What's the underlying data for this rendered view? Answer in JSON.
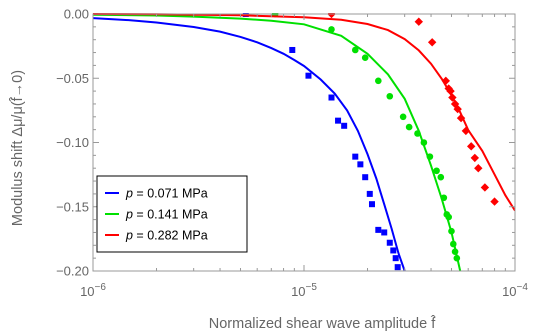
{
  "chart_data": {
    "type": "scatter",
    "xlabel": "Normalized shear wave amplitude f̂",
    "ylabel": "Modulus shift Δμ/μ(f̂→0)",
    "x_scale": "log",
    "xlim": [
      1e-06,
      0.0001
    ],
    "ylim": [
      -0.2,
      0.0
    ],
    "x_ticks": [
      1e-06,
      1e-05,
      0.0001
    ],
    "x_tick_labels": [
      {
        "base": "10",
        "exp": "−6"
      },
      {
        "base": "10",
        "exp": "−5"
      },
      {
        "base": "10",
        "exp": "−4"
      }
    ],
    "y_ticks": [
      0.0,
      -0.05,
      -0.1,
      -0.15,
      -0.2
    ],
    "y_tick_labels": [
      "0.00",
      "−0.05",
      "−0.10",
      "−0.15",
      "−0.20"
    ],
    "grid": false,
    "legend_position": "lower-left",
    "series": [
      {
        "name": "p = 0.071 MPa",
        "var": "p",
        "rest": " = 0.071 MPa",
        "color": "#0000ff",
        "marker": "square",
        "fit": {
          "x": [
            1e-06,
            1.5e-06,
            2e-06,
            3e-06,
            4e-06,
            5e-06,
            6e-06,
            7e-06,
            8e-06,
            9e-06,
            1e-05,
            1.2e-05,
            1.4e-05,
            1.6e-05,
            1.8e-05,
            2e-05,
            2.2e-05,
            2.4e-05,
            2.6e-05,
            2.8e-05,
            3e-05
          ],
          "y": [
            -0.0032,
            -0.0048,
            -0.0066,
            -0.0101,
            -0.0137,
            -0.0178,
            -0.022,
            -0.0265,
            -0.031,
            -0.0358,
            -0.0405,
            -0.051,
            -0.062,
            -0.075,
            -0.091,
            -0.109,
            -0.128,
            -0.148,
            -0.167,
            -0.186,
            -0.2
          ]
        },
        "points": {
          "x": [
            5.3e-06,
            8.8e-06,
            1.05e-05,
            1.35e-05,
            1.45e-05,
            1.55e-05,
            1.75e-05,
            1.85e-05,
            1.95e-05,
            2.05e-05,
            2.1e-05,
            2.25e-05,
            2.4e-05,
            2.55e-05,
            2.65e-05,
            2.72e-05,
            2.78e-05
          ],
          "y": [
            0.0,
            -0.028,
            -0.048,
            -0.065,
            -0.083,
            -0.087,
            -0.111,
            -0.117,
            -0.127,
            -0.14,
            -0.148,
            -0.168,
            -0.17,
            -0.178,
            -0.184,
            -0.19,
            -0.197
          ]
        }
      },
      {
        "name": "p = 0.141 MPa",
        "var": "p",
        "rest": " = 0.141 MPa",
        "color": "#00e000",
        "marker": "circle",
        "fit": {
          "x": [
            1e-06,
            2e-06,
            3e-06,
            5e-06,
            7e-06,
            1e-05,
            1.5e-05,
            2e-05,
            2.5e-05,
            3e-05,
            3.5e-05,
            4e-05,
            4.5e-05,
            5e-05,
            5.5e-05
          ],
          "y": [
            -0.0006,
            -0.0012,
            -0.002,
            -0.0036,
            -0.0052,
            -0.008,
            -0.017,
            -0.031,
            -0.047,
            -0.066,
            -0.091,
            -0.118,
            -0.144,
            -0.17,
            -0.2
          ]
        },
        "points": {
          "x": [
            7.3e-06,
            1.35e-05,
            1.75e-05,
            1.95e-05,
            2.25e-05,
            2.55e-05,
            2.95e-05,
            3.15e-05,
            3.45e-05,
            3.7e-05,
            3.95e-05,
            4.25e-05,
            4.45e-05,
            4.6e-05,
            4.75e-05,
            4.85e-05,
            5e-05,
            5.1e-05,
            5.2e-05,
            5.3e-05
          ],
          "y": [
            0.0,
            -0.012,
            -0.028,
            -0.034,
            -0.052,
            -0.064,
            -0.08,
            -0.088,
            -0.093,
            -0.1,
            -0.111,
            -0.122,
            -0.127,
            -0.143,
            -0.156,
            -0.158,
            -0.169,
            -0.179,
            -0.185,
            -0.19
          ]
        }
      },
      {
        "name": "p = 0.282 MPa",
        "var": "p",
        "rest": " = 0.282 MPa",
        "color": "#ff0000",
        "marker": "diamond",
        "fit": {
          "x": [
            1e-06,
            2e-06,
            5e-06,
            1e-05,
            1.5e-05,
            2e-05,
            2.5e-05,
            3e-05,
            3.5e-05,
            4e-05,
            4.5e-05,
            5e-05,
            5.5e-05,
            6e-05,
            7e-05,
            8e-05,
            9e-05,
            0.0001
          ],
          "y": [
            0.0,
            -0.0002,
            -0.001,
            -0.0025,
            -0.0045,
            -0.0078,
            -0.0125,
            -0.0195,
            -0.0283,
            -0.0387,
            -0.0505,
            -0.0632,
            -0.0765,
            -0.0903,
            -0.1065,
            -0.125,
            -0.141,
            -0.153
          ]
        },
        "points": {
          "x": [
            1.35e-05,
            3.5e-05,
            4.05e-05,
            4.7e-05,
            4.85e-05,
            4.95e-05,
            5.05e-05,
            5.2e-05,
            5.35e-05,
            5.55e-05,
            5.85e-05,
            6.2e-05,
            6.45e-05,
            6.7e-05,
            7.2e-05,
            8e-05
          ],
          "y": [
            0.0,
            -0.006,
            -0.022,
            -0.052,
            -0.058,
            -0.06,
            -0.065,
            -0.07,
            -0.074,
            -0.081,
            -0.091,
            -0.103,
            -0.112,
            -0.12,
            -0.135,
            -0.146
          ]
        }
      }
    ]
  }
}
